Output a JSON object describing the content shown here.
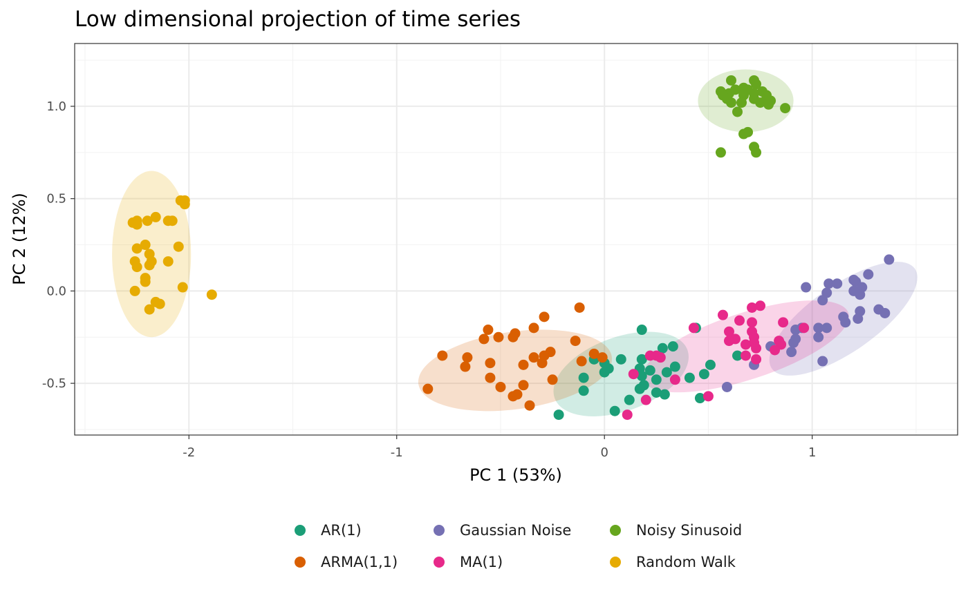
{
  "chart_data": {
    "type": "scatter",
    "title": "Low dimensional projection of time series",
    "xlabel": "PC 1 (53%)",
    "ylabel": "PC 2 (12%)",
    "xlim": [
      -2.55,
      1.7
    ],
    "ylim": [
      -0.78,
      1.34
    ],
    "x_ticks": [
      -2,
      -1,
      0,
      1
    ],
    "x_tick_labels": [
      "-2",
      "-1",
      "0",
      "1"
    ],
    "y_ticks": [
      -0.5,
      0.0,
      0.5,
      1.0
    ],
    "y_tick_labels": [
      "-0.5",
      "0.0",
      "0.5",
      "1.0"
    ],
    "grid": true,
    "legend_position": "bottom",
    "series": [
      {
        "name": "AR(1)",
        "color": "#1b9e77",
        "ellipse": {
          "cx": 0.08,
          "cy": -0.45,
          "rx": 0.34,
          "ry": 0.2,
          "angle_deg": 20
        },
        "points": [
          [
            0.18,
            -0.21
          ],
          [
            0.44,
            -0.2
          ],
          [
            0.64,
            -0.35
          ],
          [
            0.33,
            -0.3
          ],
          [
            0.28,
            -0.31
          ],
          [
            0.08,
            -0.37
          ],
          [
            0.18,
            -0.37
          ],
          [
            -0.05,
            -0.37
          ],
          [
            0.0,
            -0.39
          ],
          [
            0.02,
            -0.42
          ],
          [
            0.17,
            -0.42
          ],
          [
            0.22,
            -0.43
          ],
          [
            0.3,
            -0.44
          ],
          [
            0.34,
            -0.41
          ],
          [
            0.51,
            -0.4
          ],
          [
            0.48,
            -0.45
          ],
          [
            0.41,
            -0.47
          ],
          [
            0.18,
            -0.46
          ],
          [
            0.25,
            -0.48
          ],
          [
            0.19,
            -0.51
          ],
          [
            -0.1,
            -0.47
          ],
          [
            0.0,
            -0.44
          ],
          [
            0.17,
            -0.53
          ],
          [
            0.25,
            -0.55
          ],
          [
            0.29,
            -0.56
          ],
          [
            -0.1,
            -0.54
          ],
          [
            0.12,
            -0.59
          ],
          [
            0.05,
            -0.65
          ],
          [
            -0.22,
            -0.67
          ],
          [
            0.46,
            -0.58
          ]
        ]
      },
      {
        "name": "ARMA(1,1)",
        "color": "#d95f02",
        "ellipse": {
          "cx": -0.43,
          "cy": -0.43,
          "rx": 0.47,
          "ry": 0.21,
          "angle_deg": 8
        },
        "points": [
          [
            -0.12,
            -0.09
          ],
          [
            -0.29,
            -0.14
          ],
          [
            -0.34,
            -0.2
          ],
          [
            -0.56,
            -0.21
          ],
          [
            -0.43,
            -0.23
          ],
          [
            -0.44,
            -0.25
          ],
          [
            -0.58,
            -0.26
          ],
          [
            -0.51,
            -0.25
          ],
          [
            -0.14,
            -0.27
          ],
          [
            -0.26,
            -0.33
          ],
          [
            -0.29,
            -0.35
          ],
          [
            -0.34,
            -0.36
          ],
          [
            -0.05,
            -0.34
          ],
          [
            -0.01,
            -0.36
          ],
          [
            -0.78,
            -0.35
          ],
          [
            -0.66,
            -0.36
          ],
          [
            -0.55,
            -0.39
          ],
          [
            -0.39,
            -0.4
          ],
          [
            -0.3,
            -0.39
          ],
          [
            -0.11,
            -0.38
          ],
          [
            -0.67,
            -0.41
          ],
          [
            -0.55,
            -0.47
          ],
          [
            -0.25,
            -0.48
          ],
          [
            -0.39,
            -0.51
          ],
          [
            -0.5,
            -0.52
          ],
          [
            -0.44,
            -0.57
          ],
          [
            -0.42,
            -0.56
          ],
          [
            -0.85,
            -0.53
          ],
          [
            -0.36,
            -0.62
          ]
        ]
      },
      {
        "name": "Gaussian Noise",
        "color": "#7570b3",
        "ellipse": {
          "cx": 1.15,
          "cy": -0.15,
          "rx": 0.42,
          "ry": 0.18,
          "angle_deg": 35
        },
        "points": [
          [
            1.37,
            0.17
          ],
          [
            1.27,
            0.09
          ],
          [
            1.2,
            0.06
          ],
          [
            1.21,
            0.05
          ],
          [
            1.08,
            0.04
          ],
          [
            1.12,
            0.04
          ],
          [
            0.97,
            0.02
          ],
          [
            1.24,
            0.02
          ],
          [
            1.2,
            0.0
          ],
          [
            1.23,
            -0.02
          ],
          [
            1.07,
            -0.01
          ],
          [
            1.05,
            -0.05
          ],
          [
            1.32,
            -0.1
          ],
          [
            1.35,
            -0.12
          ],
          [
            1.23,
            -0.11
          ],
          [
            1.15,
            -0.14
          ],
          [
            1.22,
            -0.15
          ],
          [
            1.16,
            -0.17
          ],
          [
            1.03,
            -0.2
          ],
          [
            1.07,
            -0.2
          ],
          [
            0.92,
            -0.21
          ],
          [
            0.95,
            -0.2
          ],
          [
            1.03,
            -0.25
          ],
          [
            0.92,
            -0.26
          ],
          [
            0.91,
            -0.28
          ],
          [
            0.8,
            -0.3
          ],
          [
            0.9,
            -0.33
          ],
          [
            1.05,
            -0.38
          ],
          [
            0.72,
            -0.4
          ],
          [
            0.59,
            -0.52
          ]
        ]
      },
      {
        "name": "MA(1)",
        "color": "#e7298a",
        "ellipse": {
          "cx": 0.68,
          "cy": -0.3,
          "rx": 0.52,
          "ry": 0.18,
          "angle_deg": 18
        },
        "points": [
          [
            0.75,
            -0.08
          ],
          [
            0.71,
            -0.09
          ],
          [
            0.57,
            -0.13
          ],
          [
            0.71,
            -0.17
          ],
          [
            0.65,
            -0.16
          ],
          [
            0.43,
            -0.2
          ],
          [
            0.6,
            -0.22
          ],
          [
            0.71,
            -0.22
          ],
          [
            0.72,
            -0.25
          ],
          [
            0.63,
            -0.26
          ],
          [
            0.86,
            -0.17
          ],
          [
            0.96,
            -0.2
          ],
          [
            0.6,
            -0.27
          ],
          [
            0.72,
            -0.28
          ],
          [
            0.68,
            -0.29
          ],
          [
            0.84,
            -0.27
          ],
          [
            0.85,
            -0.29
          ],
          [
            0.73,
            -0.31
          ],
          [
            0.82,
            -0.32
          ],
          [
            0.68,
            -0.35
          ],
          [
            0.73,
            -0.37
          ],
          [
            0.22,
            -0.35
          ],
          [
            0.25,
            -0.35
          ],
          [
            0.27,
            -0.36
          ],
          [
            0.14,
            -0.45
          ],
          [
            0.34,
            -0.48
          ],
          [
            0.2,
            -0.59
          ],
          [
            0.5,
            -0.57
          ],
          [
            0.11,
            -0.67
          ]
        ]
      },
      {
        "name": "Noisy Sinusoid",
        "color": "#66a61e",
        "ellipse": {
          "cx": 0.68,
          "cy": 1.03,
          "rx": 0.23,
          "ry": 0.17,
          "angle_deg": 0
        },
        "points": [
          [
            0.61,
            1.14
          ],
          [
            0.72,
            1.14
          ],
          [
            0.73,
            1.12
          ],
          [
            0.67,
            1.1
          ],
          [
            0.56,
            1.08
          ],
          [
            0.6,
            1.07
          ],
          [
            0.63,
            1.09
          ],
          [
            0.69,
            1.09
          ],
          [
            0.72,
            1.07
          ],
          [
            0.76,
            1.08
          ],
          [
            0.57,
            1.06
          ],
          [
            0.67,
            1.06
          ],
          [
            0.78,
            1.06
          ],
          [
            0.59,
            1.04
          ],
          [
            0.72,
            1.04
          ],
          [
            0.78,
            1.04
          ],
          [
            0.8,
            1.03
          ],
          [
            0.61,
            1.02
          ],
          [
            0.66,
            1.02
          ],
          [
            0.75,
            1.02
          ],
          [
            0.79,
            1.01
          ],
          [
            0.87,
            0.99
          ],
          [
            0.64,
            0.97
          ],
          [
            0.69,
            0.86
          ],
          [
            0.67,
            0.85
          ],
          [
            0.72,
            0.78
          ],
          [
            0.73,
            0.75
          ],
          [
            0.56,
            0.75
          ]
        ]
      },
      {
        "name": "Random Walk",
        "color": "#e6ab02",
        "ellipse": {
          "cx": -2.18,
          "cy": 0.2,
          "rx": 0.19,
          "ry": 0.45,
          "angle_deg": 0
        },
        "points": [
          [
            -2.04,
            0.49
          ],
          [
            -2.02,
            0.49
          ],
          [
            -2.02,
            0.47
          ],
          [
            -2.16,
            0.4
          ],
          [
            -2.1,
            0.38
          ],
          [
            -2.08,
            0.38
          ],
          [
            -2.25,
            0.38
          ],
          [
            -2.27,
            0.37
          ],
          [
            -2.2,
            0.38
          ],
          [
            -2.25,
            0.36
          ],
          [
            -2.21,
            0.25
          ],
          [
            -2.05,
            0.24
          ],
          [
            -2.25,
            0.23
          ],
          [
            -2.19,
            0.2
          ],
          [
            -2.26,
            0.16
          ],
          [
            -2.18,
            0.16
          ],
          [
            -2.1,
            0.16
          ],
          [
            -2.19,
            0.14
          ],
          [
            -2.25,
            0.13
          ],
          [
            -2.21,
            0.07
          ],
          [
            -2.21,
            0.05
          ],
          [
            -2.03,
            0.02
          ],
          [
            -2.26,
            0.0
          ],
          [
            -1.89,
            -0.02
          ],
          [
            -2.16,
            -0.06
          ],
          [
            -2.14,
            -0.07
          ],
          [
            -2.19,
            -0.1
          ]
        ]
      }
    ]
  }
}
